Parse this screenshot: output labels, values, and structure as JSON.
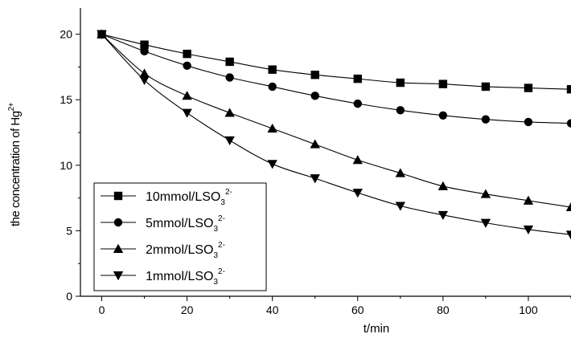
{
  "chart_data": {
    "type": "line",
    "xlabel": "t/min",
    "ylabel": {
      "base": "the concentration of Hg",
      "sup": "2+"
    },
    "xlim": [
      -5,
      110
    ],
    "ylim": [
      0,
      22
    ],
    "xticks": [
      0,
      20,
      40,
      60,
      80,
      100
    ],
    "yticks": [
      0,
      5,
      10,
      15,
      20
    ],
    "x": [
      0,
      10,
      20,
      30,
      40,
      50,
      60,
      70,
      80,
      90,
      100,
      110
    ],
    "series": [
      {
        "name": {
          "base": "10mmol/LSO",
          "sub": "3",
          "sup": "2-"
        },
        "marker": "square",
        "values": [
          20,
          19.2,
          18.5,
          17.9,
          17.3,
          16.9,
          16.6,
          16.3,
          16.2,
          16.0,
          15.9,
          15.8
        ]
      },
      {
        "name": {
          "base": "5mmol/LSO",
          "sub": "3",
          "sup": "2-"
        },
        "marker": "circle",
        "values": [
          20,
          18.7,
          17.6,
          16.7,
          16.0,
          15.3,
          14.7,
          14.2,
          13.8,
          13.5,
          13.3,
          13.2
        ]
      },
      {
        "name": {
          "base": "2mmol/LSO",
          "sub": "3",
          "sup": "2-"
        },
        "marker": "triangle-up",
        "values": [
          20,
          17.0,
          15.3,
          14.0,
          12.8,
          11.6,
          10.4,
          9.4,
          8.4,
          7.8,
          7.3,
          6.8
        ]
      },
      {
        "name": {
          "base": "1mmol/LSO",
          "sub": "3",
          "sup": "2-"
        },
        "marker": "triangle-down",
        "values": [
          20,
          16.5,
          14.0,
          11.9,
          10.1,
          9.0,
          7.9,
          6.9,
          6.2,
          5.6,
          5.1,
          4.7
        ]
      }
    ],
    "legend": "bottom-left",
    "grid": false
  }
}
